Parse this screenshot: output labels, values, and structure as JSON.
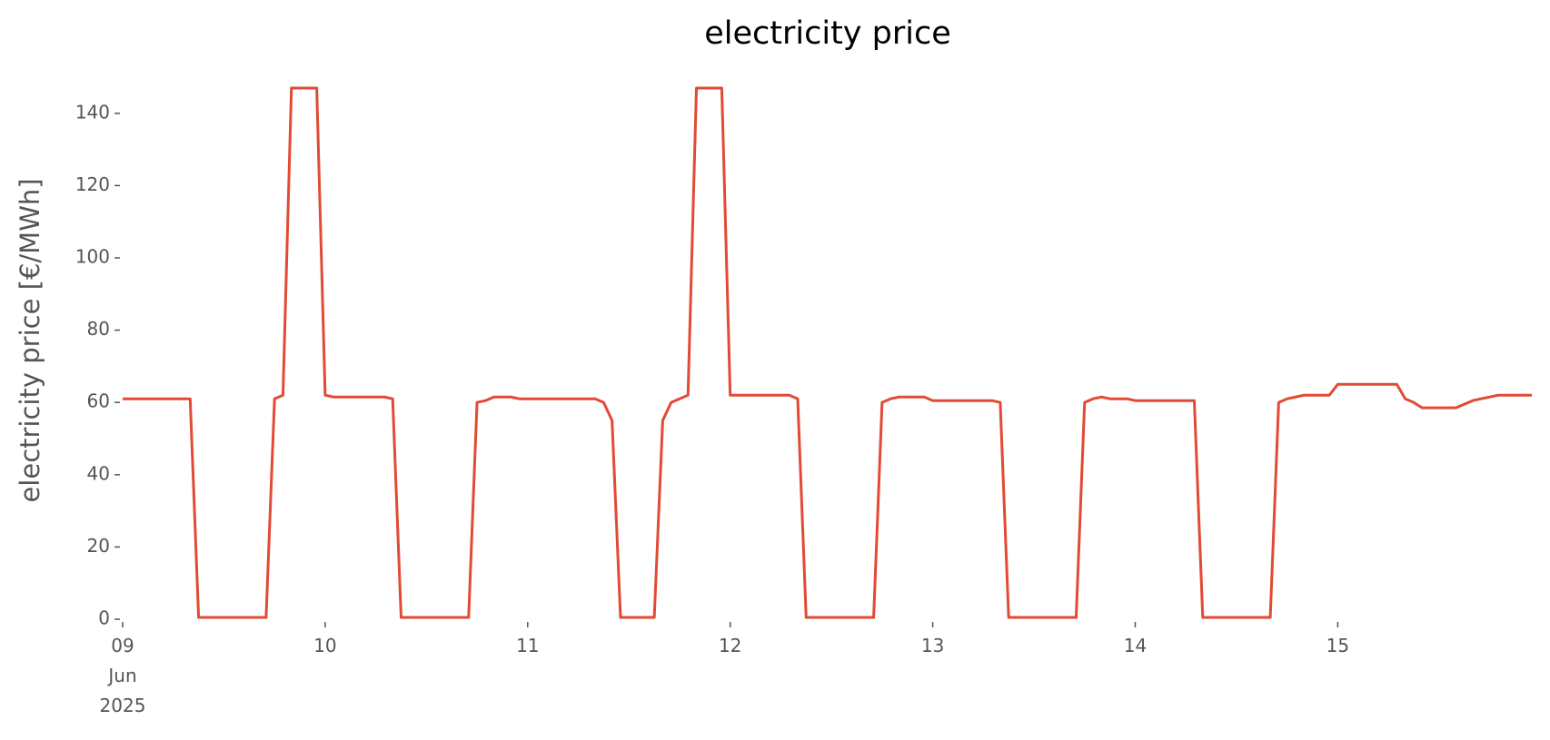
{
  "chart_data": {
    "type": "line",
    "title": "electricity price",
    "y_label": "electricity price [€/MWh]",
    "series": [
      {
        "name": "electricity price",
        "color": "#E24A33",
        "values": [
          61,
          61,
          61,
          61,
          61,
          61,
          61,
          61,
          61,
          0.5,
          0.5,
          0.5,
          0.5,
          0.5,
          0.5,
          0.5,
          0.5,
          0.5,
          61,
          62,
          147,
          147,
          147,
          147,
          62,
          61.5,
          61.5,
          61.5,
          61.5,
          61.5,
          61.5,
          61.5,
          61,
          0.5,
          0.5,
          0.5,
          0.5,
          0.5,
          0.5,
          0.5,
          0.5,
          0.5,
          60,
          60.5,
          61.5,
          61.5,
          61.5,
          61,
          61,
          61,
          61,
          61,
          61,
          61,
          61,
          61,
          61,
          60,
          55,
          0.5,
          0.5,
          0.5,
          0.5,
          0.5,
          55,
          60,
          61,
          62,
          147,
          147,
          147,
          147,
          62,
          62,
          62,
          62,
          62,
          62,
          62,
          62,
          61,
          0.5,
          0.5,
          0.5,
          0.5,
          0.5,
          0.5,
          0.5,
          0.5,
          0.5,
          60,
          61,
          61.5,
          61.5,
          61.5,
          61.5,
          60.5,
          60.5,
          60.5,
          60.5,
          60.5,
          60.5,
          60.5,
          60.5,
          60,
          0.5,
          0.5,
          0.5,
          0.5,
          0.5,
          0.5,
          0.5,
          0.5,
          0.5,
          60,
          61,
          61.5,
          61,
          61,
          61,
          60.5,
          60.5,
          60.5,
          60.5,
          60.5,
          60.5,
          60.5,
          60.5,
          0.5,
          0.5,
          0.5,
          0.5,
          0.5,
          0.5,
          0.5,
          0.5,
          0.5,
          60,
          61,
          61.5,
          62,
          62,
          62,
          62,
          65,
          65,
          65,
          65,
          65,
          65,
          65,
          65,
          61,
          60,
          58.5,
          58.5,
          58.5,
          58.5,
          58.5,
          59.5,
          60.5,
          61,
          61.5,
          62,
          62,
          62,
          62,
          62
        ]
      }
    ],
    "xlim": [
      0,
      167
    ],
    "xticks": [
      {
        "value": 0,
        "label": "09\nJun\n2025"
      },
      {
        "value": 24,
        "label": "10"
      },
      {
        "value": 48,
        "label": "11"
      },
      {
        "value": 72,
        "label": "12"
      },
      {
        "value": 96,
        "label": "13"
      },
      {
        "value": 120,
        "label": "14"
      },
      {
        "value": 144,
        "label": "15"
      }
    ],
    "ylim": [
      0,
      150
    ],
    "yticks": [
      0,
      20,
      40,
      60,
      80,
      100,
      120,
      140
    ]
  }
}
